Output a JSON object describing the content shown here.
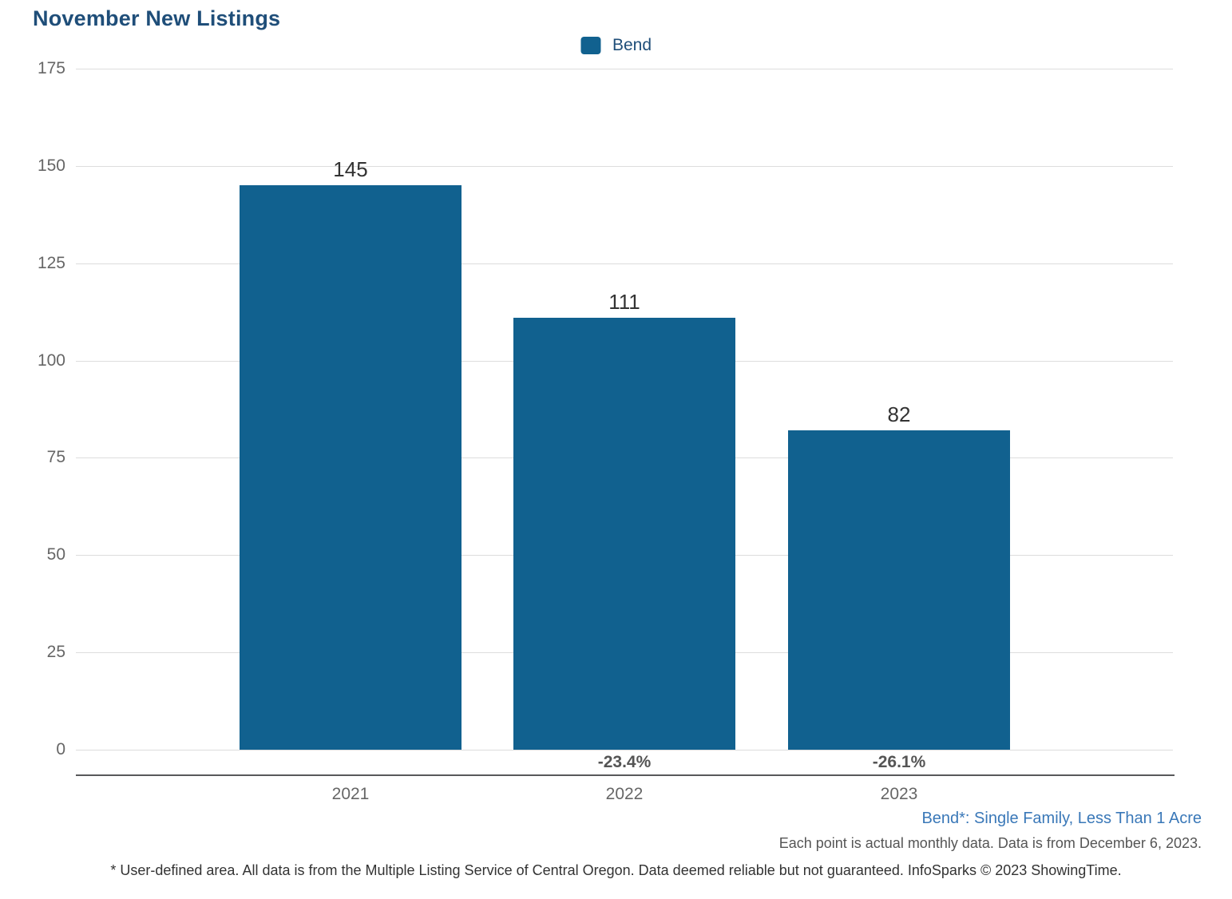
{
  "title": "November New Listings",
  "legend": {
    "label": "Bend"
  },
  "chart_data": {
    "type": "bar",
    "title": "November New Listings",
    "categories": [
      "2021",
      "2022",
      "2023"
    ],
    "series": [
      {
        "name": "Bend",
        "values": [
          145,
          111,
          82
        ]
      }
    ],
    "values": [
      145,
      111,
      82
    ],
    "value_labels": [
      "145",
      "111",
      "82"
    ],
    "pct_change_labels": [
      "",
      "-23.4%",
      "-26.1%"
    ],
    "xlabel": "",
    "ylabel": "",
    "ylim": [
      0,
      175
    ],
    "yticks": [
      0,
      25,
      50,
      75,
      100,
      125,
      150,
      175
    ],
    "grid": "horizontal",
    "legend_position": "top-center",
    "bar_color": "#11618F"
  },
  "footer": {
    "series_note": "Bend*: Single Family, Less Than 1 Acre",
    "data_note": "Each point is actual monthly data. Data is from December 6, 2023.",
    "disclaimer": "* User-defined area. All data is from the Multiple Listing Service of Central Oregon. Data deemed reliable but not guaranteed. InfoSparks © 2023 ShowingTime."
  },
  "colors": {
    "bar": "#11618F",
    "title": "#1F4E79",
    "footer_link": "#3A78B8",
    "gridline": "#DDDDDD",
    "axis_line": "#58595B",
    "tick_label": "#666666",
    "value_label": "#333333",
    "pct_label": "#555555"
  }
}
